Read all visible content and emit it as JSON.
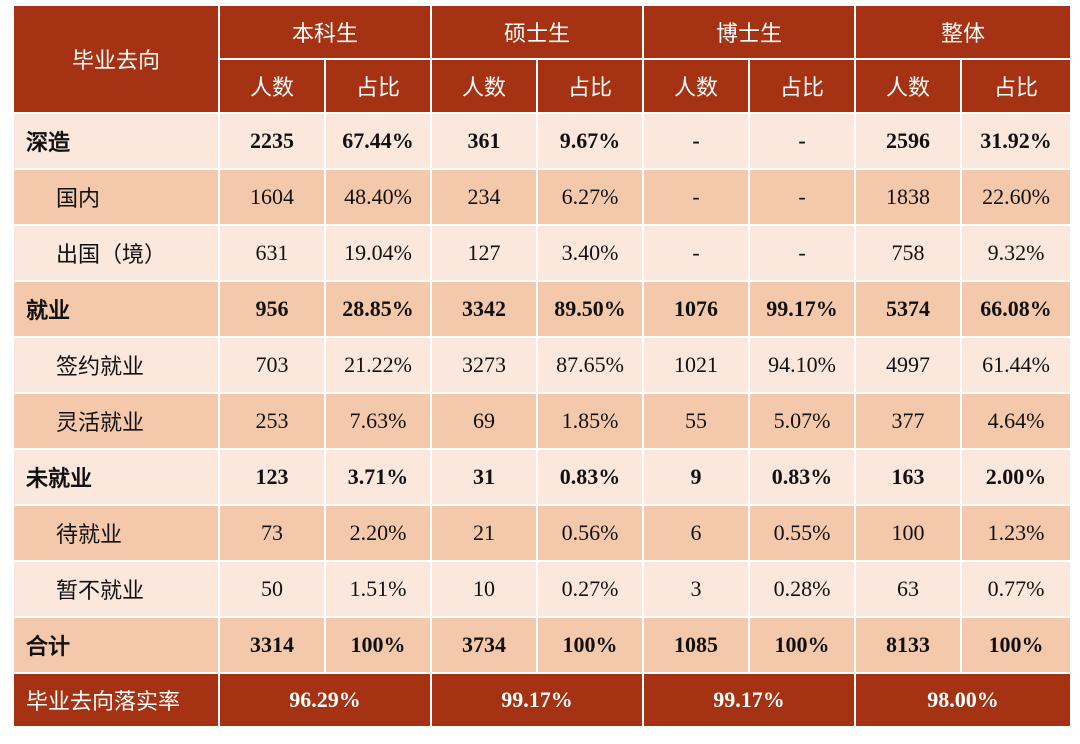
{
  "header": {
    "category": "毕业去向",
    "groups": [
      "本科生",
      "硕士生",
      "博士生",
      "整体"
    ],
    "sub_count": "人数",
    "sub_ratio": "占比"
  },
  "rows": [
    {
      "label": "深造",
      "level": "main",
      "shade": "light",
      "cells": [
        "2235",
        "67.44%",
        "361",
        "9.67%",
        "-",
        "-",
        "2596",
        "31.92%"
      ]
    },
    {
      "label": "国内",
      "level": "sub",
      "shade": "dark",
      "cells": [
        "1604",
        "48.40%",
        "234",
        "6.27%",
        "-",
        "-",
        "1838",
        "22.60%"
      ]
    },
    {
      "label": "出国（境）",
      "level": "sub",
      "shade": "light",
      "cells": [
        "631",
        "19.04%",
        "127",
        "3.40%",
        "-",
        "-",
        "758",
        "9.32%"
      ]
    },
    {
      "label": "就业",
      "level": "main",
      "shade": "dark",
      "cells": [
        "956",
        "28.85%",
        "3342",
        "89.50%",
        "1076",
        "99.17%",
        "5374",
        "66.08%"
      ]
    },
    {
      "label": "签约就业",
      "level": "sub",
      "shade": "light",
      "cells": [
        "703",
        "21.22%",
        "3273",
        "87.65%",
        "1021",
        "94.10%",
        "4997",
        "61.44%"
      ]
    },
    {
      "label": "灵活就业",
      "level": "sub",
      "shade": "dark",
      "cells": [
        "253",
        "7.63%",
        "69",
        "1.85%",
        "55",
        "5.07%",
        "377",
        "4.64%"
      ]
    },
    {
      "label": "未就业",
      "level": "main",
      "shade": "light",
      "cells": [
        "123",
        "3.71%",
        "31",
        "0.83%",
        "9",
        "0.83%",
        "163",
        "2.00%"
      ]
    },
    {
      "label": "待就业",
      "level": "sub",
      "shade": "dark",
      "cells": [
        "73",
        "2.20%",
        "21",
        "0.56%",
        "6",
        "0.55%",
        "100",
        "1.23%"
      ]
    },
    {
      "label": "暂不就业",
      "level": "sub",
      "shade": "light",
      "cells": [
        "50",
        "1.51%",
        "10",
        "0.27%",
        "3",
        "0.28%",
        "63",
        "0.77%"
      ]
    },
    {
      "label": "合计",
      "level": "main",
      "shade": "dark",
      "cells": [
        "3314",
        "100%",
        "3734",
        "100%",
        "1085",
        "100%",
        "8133",
        "100%"
      ]
    }
  ],
  "footer": {
    "label": "毕业去向落实率",
    "rates": [
      "96.29%",
      "99.17%",
      "99.17%",
      "98.00%"
    ]
  },
  "colors": {
    "header_bg": "#a53213",
    "row_light": "#fce7dc",
    "row_dark": "#f4c8ab"
  }
}
